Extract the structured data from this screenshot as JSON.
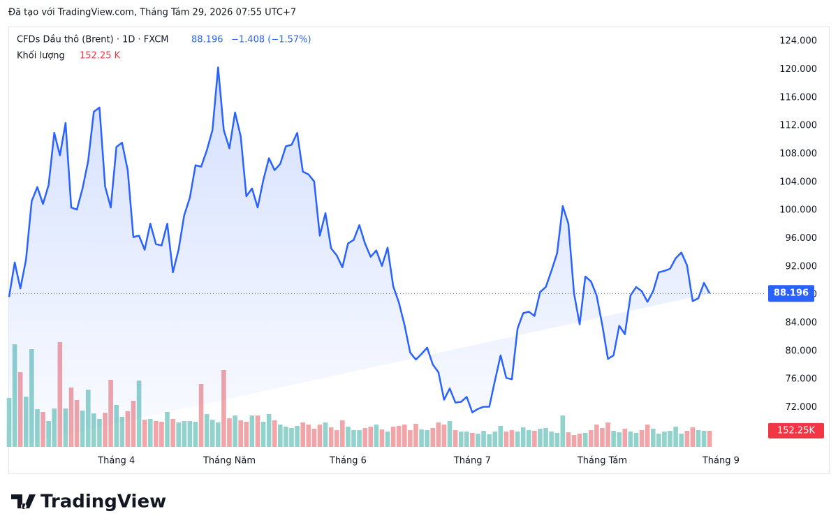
{
  "chart_data": {
    "type": "line",
    "created_note": "Đã tạo với TradingView.com, Tháng Tám 29, 2026 07:55 UTC+7",
    "symbol": "CFDs Dầu thô (Brent) · 1D · FXCM",
    "change_text": "−1.408 (−1.57%)",
    "volume_title": "Khối lượng",
    "last_volume_label": "152.25 K",
    "last_volume_tag": "152.25K",
    "brand": "TradingView",
    "color": "#2962ff",
    "up_color": "#92d2cc",
    "down_color": "#f2a5a8",
    "categories": [
      null,
      null,
      null,
      null,
      null,
      null,
      null,
      null,
      null,
      null,
      null,
      null,
      null,
      null,
      null,
      null,
      null,
      null,
      null,
      "Tháng 4",
      null,
      null,
      null,
      null,
      null,
      null,
      null,
      null,
      null,
      null,
      null,
      null,
      null,
      null,
      null,
      null,
      null,
      null,
      null,
      "Tháng Năm",
      null,
      null,
      null,
      null,
      null,
      null,
      null,
      null,
      null,
      null,
      null,
      null,
      null,
      null,
      null,
      null,
      null,
      null,
      null,
      null,
      "Tháng 6",
      null,
      null,
      null,
      null,
      null,
      null,
      null,
      null,
      null,
      null,
      null,
      null,
      null,
      null,
      null,
      null,
      null,
      null,
      null,
      null,
      null,
      "Tháng 7",
      null,
      null,
      null,
      null,
      null,
      null,
      null,
      null,
      null,
      null,
      null,
      null,
      null,
      null,
      null,
      null,
      null,
      null,
      null,
      null,
      null,
      null,
      "Tháng Tám",
      null,
      null,
      null,
      null,
      null,
      null,
      null,
      null,
      null,
      null,
      null,
      null,
      null,
      null,
      null,
      null,
      null,
      null,
      null,
      null,
      "Tháng 9"
    ],
    "values": [
      87.7,
      92.6,
      88.9,
      93,
      101.3,
      103.3,
      100.9,
      103.6,
      111,
      107.8,
      112.4,
      100.4,
      100.1,
      103.1,
      107,
      114,
      114.6,
      103.4,
      100.4,
      109,
      109.6,
      105.7,
      96.2,
      96.4,
      94.4,
      98.1,
      95.2,
      95,
      98.1,
      91.2,
      94.4,
      99.3,
      101.8,
      106.4,
      106.2,
      108.5,
      111.4,
      120.3,
      111.4,
      108.8,
      113.9,
      110.5,
      102,
      103.1,
      100.4,
      104.3,
      107.4,
      105.7,
      106.6,
      109.1,
      109.3,
      111,
      105.5,
      105.1,
      104.1,
      96.4,
      99.6,
      94.6,
      93.6,
      91.9,
      95.3,
      95.8,
      97.9,
      95.3,
      93.4,
      94.3,
      92.1,
      94.7,
      89.2,
      86.9,
      83.7,
      79.8,
      78.8,
      79.6,
      80.5,
      78.1,
      77,
      73.1,
      74.7,
      72.7,
      72.8,
      73.5,
      71.3,
      71.8,
      72.1,
      72.1,
      75.8,
      79.4,
      76.2,
      76,
      83.2,
      85.4,
      85.6,
      85,
      88.4,
      89.1,
      91.4,
      93.9,
      100.6,
      98.1,
      88.2,
      83.8,
      90.6,
      89.9,
      87.9,
      83.7,
      78.9,
      79.4,
      83.6,
      82.4,
      87.9,
      89.1,
      88.5,
      87,
      88.5,
      91.2,
      91.4,
      91.7,
      93.2,
      94,
      92.2,
      87.1,
      87.5,
      89.7,
      88.196,
      null,
      null
    ],
    "volumes": [
      462,
      970,
      706,
      475,
      924,
      356,
      330,
      244,
      363,
      990,
      363,
      561,
      442,
      343,
      541,
      317,
      264,
      323,
      634,
      396,
      284,
      337,
      436,
      627,
      257,
      264,
      244,
      238,
      330,
      264,
      231,
      244,
      244,
      238,
      594,
      310,
      257,
      231,
      726,
      271,
      297,
      251,
      238,
      297,
      297,
      238,
      310,
      251,
      211,
      191,
      178,
      198,
      231,
      211,
      172,
      211,
      231,
      185,
      158,
      251,
      191,
      158,
      158,
      178,
      191,
      211,
      165,
      145,
      191,
      198,
      211,
      158,
      218,
      165,
      158,
      178,
      231,
      211,
      244,
      158,
      145,
      145,
      132,
      125,
      152,
      119,
      145,
      198,
      145,
      158,
      145,
      185,
      158,
      152,
      172,
      178,
      145,
      132,
      297,
      138,
      112,
      125,
      132,
      158,
      211,
      178,
      231,
      152,
      138,
      172,
      145,
      132,
      158,
      211,
      172,
      125,
      145,
      152,
      191,
      125,
      152,
      185,
      158,
      152,
      152.25,
      null,
      null
    ],
    "ylim": [
      66.4,
      125.9
    ],
    "yticks": [
      {
        "value": 72,
        "label": "72.000"
      },
      {
        "value": 76,
        "label": "76.000"
      },
      {
        "value": 80,
        "label": "80.000"
      },
      {
        "value": 84,
        "label": "84.000"
      },
      {
        "value": 88,
        "label": "88.000"
      },
      {
        "value": 92,
        "label": "92.000"
      },
      {
        "value": 96,
        "label": "96.000"
      },
      {
        "value": 100,
        "label": "100.000"
      },
      {
        "value": 104,
        "label": "104.000"
      },
      {
        "value": 108,
        "label": "108.000"
      },
      {
        "value": 112,
        "label": "112.000"
      },
      {
        "value": 116,
        "label": "116.000"
      },
      {
        "value": 120,
        "label": "120.000"
      },
      {
        "value": 124,
        "label": "124.000"
      }
    ]
  }
}
